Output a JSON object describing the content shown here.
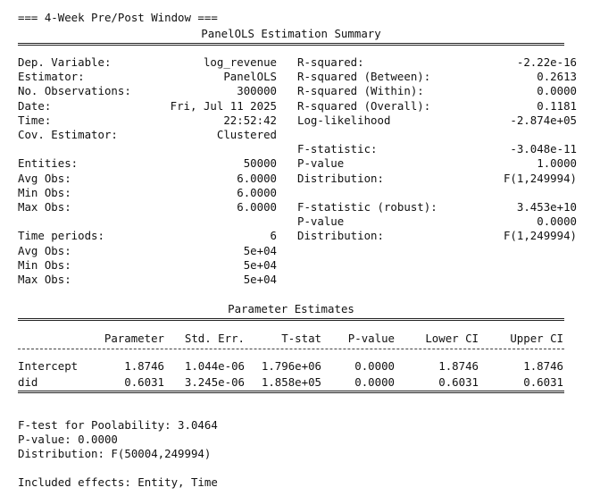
{
  "header": "=== 4-Week Pre/Post Window ===",
  "title": "PanelOLS Estimation Summary",
  "summary_left": [
    {
      "label": "Dep. Variable:",
      "value": "log_revenue"
    },
    {
      "label": "Estimator:",
      "value": "PanelOLS"
    },
    {
      "label": "No. Observations:",
      "value": "300000"
    },
    {
      "label": "Date:",
      "value": "Fri, Jul 11 2025"
    },
    {
      "label": "Time:",
      "value": "22:52:42"
    },
    {
      "label": "Cov. Estimator:",
      "value": "Clustered"
    },
    {
      "label": "",
      "value": ""
    },
    {
      "label": "Entities:",
      "value": "50000"
    },
    {
      "label": "Avg Obs:",
      "value": "6.0000"
    },
    {
      "label": "Min Obs:",
      "value": "6.0000"
    },
    {
      "label": "Max Obs:",
      "value": "6.0000"
    },
    {
      "label": "",
      "value": ""
    },
    {
      "label": "Time periods:",
      "value": "6"
    },
    {
      "label": "Avg Obs:",
      "value": "5e+04"
    },
    {
      "label": "Min Obs:",
      "value": "5e+04"
    },
    {
      "label": "Max Obs:",
      "value": "5e+04"
    }
  ],
  "summary_right": [
    {
      "label": "R-squared:",
      "value": "-2.22e-16"
    },
    {
      "label": "R-squared (Between):",
      "value": "0.2613"
    },
    {
      "label": "R-squared (Within):",
      "value": "0.0000"
    },
    {
      "label": "R-squared (Overall):",
      "value": "0.1181"
    },
    {
      "label": "Log-likelihood",
      "value": "-2.874e+05"
    },
    {
      "label": "",
      "value": ""
    },
    {
      "label": "F-statistic:",
      "value": "-3.048e-11"
    },
    {
      "label": "P-value",
      "value": "1.0000"
    },
    {
      "label": "Distribution:",
      "value": "F(1,249994)"
    },
    {
      "label": "",
      "value": ""
    },
    {
      "label": "F-statistic (robust):",
      "value": "3.453e+10"
    },
    {
      "label": "P-value",
      "value": "0.0000"
    },
    {
      "label": "Distribution:",
      "value": "F(1,249994)"
    }
  ],
  "params_title": "Parameter Estimates",
  "params_headers": [
    "Parameter",
    "Std. Err.",
    "T-stat",
    "P-value",
    "Lower CI",
    "Upper CI"
  ],
  "params_rows": [
    {
      "name": "Intercept",
      "cells": [
        "1.8746",
        "1.044e-06",
        "1.796e+06",
        "0.0000",
        "1.8746",
        "1.8746"
      ]
    },
    {
      "name": "did",
      "cells": [
        "0.6031",
        "3.245e-06",
        "1.858e+05",
        "0.0000",
        "0.6031",
        "0.6031"
      ]
    }
  ],
  "footer": {
    "poolability": "F-test for Poolability: 3.0464",
    "pvalue": "P-value: 0.0000",
    "distribution": "Distribution: F(50004,249994)",
    "effects": "Included effects: Entity, Time"
  }
}
